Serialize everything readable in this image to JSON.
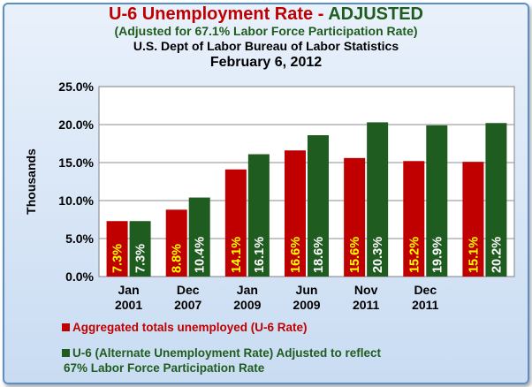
{
  "header": {
    "title_part1": "U-6 Unemployment Rate - ",
    "title_part2": "ADJUSTED",
    "subtitle": "(Adjusted for 67.1% Labor Force Participation Rate)",
    "source": "U.S. Dept of Labor Bureau of Labor Statistics",
    "date": "February 6, 2012"
  },
  "colors": {
    "series1": "#c00000",
    "series2": "#1f5c1f",
    "label1_text": "#ffff00",
    "label2_text": "#ffffff",
    "title_red": "#c00000",
    "title_green": "#1f5c1f"
  },
  "chart_data": {
    "type": "bar",
    "ylabel": "Thousands",
    "ylim": [
      0,
      25
    ],
    "y_ticks": [
      "0.0%",
      "5.0%",
      "10.0%",
      "15.0%",
      "20.0%",
      "25.0%"
    ],
    "y_tick_values": [
      0,
      5,
      10,
      15,
      20,
      25
    ],
    "categories": [
      [
        "Jan",
        "2001"
      ],
      [
        "Dec",
        "2007"
      ],
      [
        "Jan",
        "2009"
      ],
      [
        "Jun",
        "2009"
      ],
      [
        "Nov",
        "2011"
      ],
      [
        "Dec",
        "2011"
      ],
      [
        "",
        ""
      ]
    ],
    "series": [
      {
        "name": "Aggregated totals unemployed (U-6 Rate)",
        "values": [
          7.3,
          8.8,
          14.1,
          16.6,
          15.6,
          15.2,
          15.1
        ],
        "labels": [
          "7.3%",
          "8.8%",
          "14.1%",
          "16.6%",
          "15.6%",
          "15.2%",
          "15.1%"
        ]
      },
      {
        "name": "U-6 (Alternate Unemployment Rate) Adjusted to reflect 67% Labor Force Participation Rate",
        "values": [
          7.3,
          10.4,
          16.1,
          18.6,
          20.3,
          19.9,
          20.2
        ],
        "labels": [
          "7.3%",
          "10.4%",
          "16.1%",
          "18.6%",
          "20.3%",
          "19.9%",
          "20.2%"
        ]
      }
    ],
    "grid": "horizontal",
    "legend_position": "bottom-left"
  },
  "legend": {
    "item1": "Aggregated totals unemployed (U-6 Rate)",
    "item2_line1": "U-6 (Alternate Unemployment Rate) Adjusted to reflect",
    "item2_line2": "67% Labor Force Participation Rate"
  }
}
